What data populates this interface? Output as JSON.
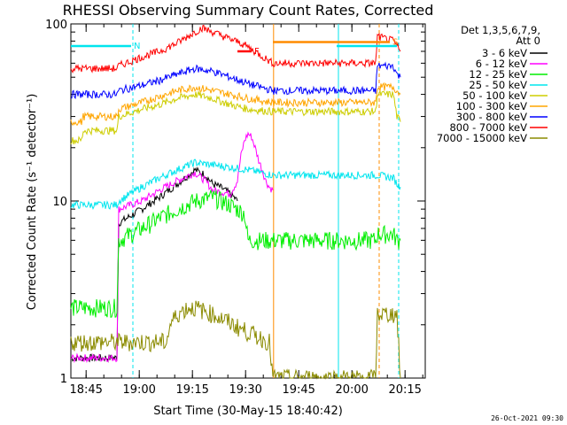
{
  "chart_data": {
    "type": "line",
    "title": "RHESSI Observing Summary Count Rates, Corrected",
    "xlabel": "Start Time (30-May-15 18:40:42)",
    "ylabel": "Corrected Count Rate (s⁻¹ detector⁻¹)",
    "yscale": "log",
    "ylim": [
      1,
      100
    ],
    "xlim_minutes": [
      0,
      100
    ],
    "x_tick_labels": [
      "18:45",
      "19:00",
      "19:15",
      "19:30",
      "19:45",
      "20:00",
      "20:15"
    ],
    "x_tick_minutes": [
      4.3,
      19.3,
      34.3,
      49.3,
      64.3,
      79.3,
      94.3
    ],
    "y_tick_labels": [
      "1",
      "10",
      "100"
    ],
    "y_tick_values": [
      1,
      10,
      100
    ],
    "legend_header": [
      "Det 1,3,5,6,7,9,",
      "Att 0"
    ],
    "legend_position": "right",
    "timestamp": "26-Oct-2021 09:30",
    "flags": {
      "N": {
        "label": "N",
        "color": "#00e5ee",
        "level": 75,
        "start": 0,
        "end": 17,
        "dashed_at": 17
      },
      "F": {
        "label": "F",
        "color": "#ff0000",
        "level": 70,
        "start": 47,
        "end": 51
      },
      "S": {
        "label": "S",
        "color": "#ff8c00",
        "level": 79,
        "start": 57,
        "end": 90
      },
      "N2": {
        "color": "#00e5ee",
        "level": 75,
        "start": 75,
        "end": 92
      }
    },
    "markers": [
      {
        "x": 17.5,
        "color": "#00e5ee",
        "style": "dashed"
      },
      {
        "x": 57.2,
        "color": "#ff8c00",
        "style": "solid"
      },
      {
        "x": 75.5,
        "color": "#00e5ee",
        "style": "solid"
      },
      {
        "x": 87.0,
        "color": "#ff8c00",
        "style": "dashed"
      },
      {
        "x": 92.5,
        "color": "#00e5ee",
        "style": "dashed"
      }
    ],
    "series": [
      {
        "name": "3 - 6 keV",
        "color": "#000000",
        "x": [
          0,
          13,
          13.5,
          20,
          25,
          30,
          35,
          38,
          40,
          42,
          45,
          46,
          47
        ],
        "y": [
          1.3,
          1.3,
          7.5,
          9,
          10.5,
          12.5,
          15,
          14,
          12.5,
          12,
          11,
          10.5,
          10
        ]
      },
      {
        "name": "6 - 12 keV",
        "color": "#ff00ff",
        "x": [
          0,
          13,
          13.5,
          20,
          25,
          30,
          35,
          38,
          40,
          45,
          47,
          48,
          49,
          50,
          51,
          52,
          53,
          54,
          55,
          56,
          57
        ],
        "y": [
          1.3,
          1.3,
          9,
          10,
          11.5,
          13,
          14.5,
          13,
          11.5,
          11,
          13,
          18,
          22,
          24,
          23,
          20,
          17,
          15,
          13,
          12,
          11.5
        ]
      },
      {
        "name": "12 - 25 keV",
        "color": "#00ee00",
        "x": [
          0,
          13,
          13.5,
          20,
          25,
          30,
          35,
          40,
          45,
          49,
          50,
          56,
          57,
          86,
          86.5,
          91,
          92,
          93
        ],
        "y": [
          2.5,
          2.5,
          6,
          7,
          8,
          9,
          10,
          10.5,
          9.5,
          8.5,
          6,
          6,
          6,
          6,
          6.5,
          6.5,
          6,
          6
        ]
      },
      {
        "name": "25 - 50 keV",
        "color": "#00e5ee",
        "x": [
          0,
          13,
          13.5,
          20,
          25,
          30,
          35,
          40,
          45,
          50,
          57,
          86,
          86.5,
          91,
          92,
          93
        ],
        "y": [
          9.5,
          9.5,
          10,
          12,
          13.5,
          15,
          16.5,
          16,
          15.5,
          15,
          14,
          14,
          14,
          13.5,
          12.5,
          12
        ]
      },
      {
        "name": "50 - 100 keV",
        "color": "#cdcd00",
        "x": [
          0,
          3,
          3.5,
          13,
          13.5,
          20,
          25,
          30,
          35,
          40,
          45,
          50,
          57,
          86,
          86.5,
          91,
          92,
          93
        ],
        "y": [
          22,
          22,
          25,
          25,
          30,
          33,
          35,
          38,
          40,
          38,
          35,
          33,
          32,
          32,
          40,
          40,
          30,
          28
        ]
      },
      {
        "name": "100 - 300 keV",
        "color": "#ffa500",
        "x": [
          0,
          3,
          3.5,
          13,
          13.5,
          20,
          25,
          30,
          35,
          40,
          45,
          50,
          57,
          86,
          86.5,
          91,
          92,
          93
        ],
        "y": [
          28,
          28,
          30,
          30,
          33,
          36,
          39,
          42,
          44,
          42,
          40,
          38,
          36,
          36,
          44,
          44,
          42,
          40
        ]
      },
      {
        "name": "300 - 800 keV",
        "color": "#0000ff",
        "x": [
          0,
          13,
          13.5,
          20,
          25,
          30,
          35,
          40,
          45,
          50,
          57,
          86,
          86.5,
          91,
          92,
          93
        ],
        "y": [
          40,
          40,
          42,
          45,
          48,
          52,
          56,
          54,
          50,
          46,
          42,
          42,
          58,
          58,
          52,
          50
        ]
      },
      {
        "name": "800 - 7000 keV",
        "color": "#ff0000",
        "x": [
          0,
          13,
          13.5,
          20,
          25,
          30,
          35,
          37,
          40,
          45,
          48,
          50,
          57,
          86,
          86.5,
          91,
          92,
          93
        ],
        "y": [
          56,
          56,
          58,
          65,
          70,
          78,
          90,
          95,
          90,
          82,
          78,
          74,
          60,
          60,
          85,
          80,
          75,
          70
        ]
      },
      {
        "name": "7000 - 15000 keV",
        "color": "#8b8b00",
        "x": [
          0,
          27,
          28,
          30,
          33,
          35,
          40,
          44,
          48,
          56,
          57,
          86,
          86.5,
          92,
          93
        ],
        "y": [
          1.6,
          1.6,
          2.0,
          2.3,
          2.5,
          2.5,
          2.3,
          2.1,
          1.9,
          1.6,
          1.0,
          1.0,
          2.3,
          2.3,
          1.0
        ]
      }
    ]
  }
}
